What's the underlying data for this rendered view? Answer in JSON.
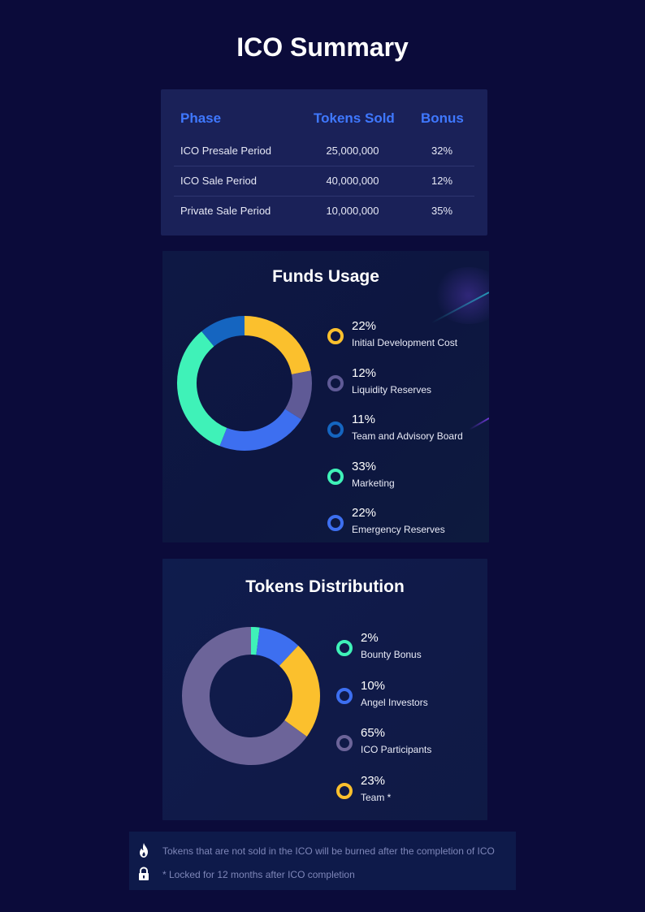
{
  "page": {
    "title": "ICO Summary"
  },
  "phases": {
    "headers": [
      "Phase",
      "Tokens Sold",
      "Bonus"
    ],
    "rows": [
      {
        "phase": "ICO Presale Period",
        "tokens": "25,000,000",
        "bonus": "32%"
      },
      {
        "phase": "ICO Sale Period",
        "tokens": "40,000,000",
        "bonus": "12%"
      },
      {
        "phase": "Private Sale Period",
        "tokens": "10,000,000",
        "bonus": "35%"
      }
    ]
  },
  "chart_data": [
    {
      "type": "pie",
      "title": "Funds Usage",
      "categories": [
        "Initial Development Cost",
        "Liquidity Reserves",
        "Team and Advisory Board",
        "Marketing",
        "Emergency Reserves"
      ],
      "values": [
        22,
        12,
        11,
        33,
        22
      ],
      "labels": [
        "22%",
        "12%",
        "11%",
        "33%",
        "22%"
      ],
      "colors": [
        "#fbc02d",
        "#5f5a96",
        "#1565c0",
        "#3ff2b8",
        "#3d6ff0"
      ],
      "ring_order": [
        0,
        1,
        4,
        3,
        2
      ],
      "legend_position": "right"
    },
    {
      "type": "pie",
      "title": "Tokens Distribution",
      "categories": [
        "Bounty Bonus",
        "Angel Investors",
        "ICO Participants",
        "Team *"
      ],
      "values": [
        2,
        10,
        65,
        23
      ],
      "labels": [
        "2%",
        "10%",
        "65%",
        "23%"
      ],
      "colors": [
        "#3ff2b8",
        "#3d6ff0",
        "#6c6499",
        "#fbc02d"
      ],
      "ring_order": [
        0,
        1,
        3,
        2
      ],
      "legend_position": "right"
    }
  ],
  "notes": [
    {
      "icon": "fire-icon",
      "text": "Tokens that are not sold in the ICO will be burned after the completion of ICO"
    },
    {
      "icon": "lock-icon",
      "text": "* Locked for 12 months after ICO completion"
    }
  ]
}
